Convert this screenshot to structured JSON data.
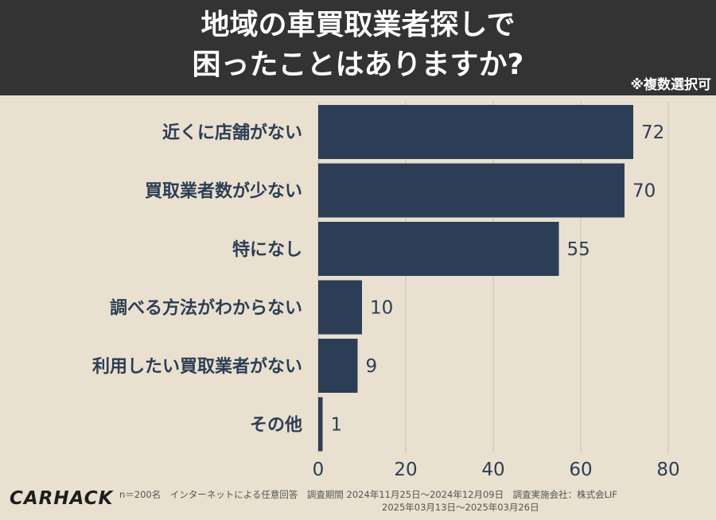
{
  "title": {
    "line1": "地域の車買取業者探しで",
    "line2": "困ったことはありますか?"
  },
  "note": "※複数選択可",
  "footer": {
    "logo": "CARHACK",
    "line1": "n＝200名　インターネットによる任意回答　調査期間 2024年11月25日〜2024年12月09日　調査実施会社：株式会LIF",
    "line2": "2025年03月13日〜2025年03月26日"
  },
  "colors": {
    "bar": "#2c3e55",
    "background": "#e9e0cf",
    "header": "#333333",
    "grid": "#d6ccb9"
  },
  "chart_data": {
    "type": "bar",
    "orientation": "horizontal",
    "categories": [
      "近くに店舗がない",
      "買取業者数が少ない",
      "特になし",
      "調べる方法がわからない",
      "利用したい買取業者がない",
      "その他"
    ],
    "values": [
      72,
      70,
      55,
      10,
      9,
      1
    ],
    "xlim": [
      0,
      80
    ],
    "xticks": [
      0,
      20,
      40,
      60,
      80
    ],
    "grid": true,
    "legend": "none"
  }
}
